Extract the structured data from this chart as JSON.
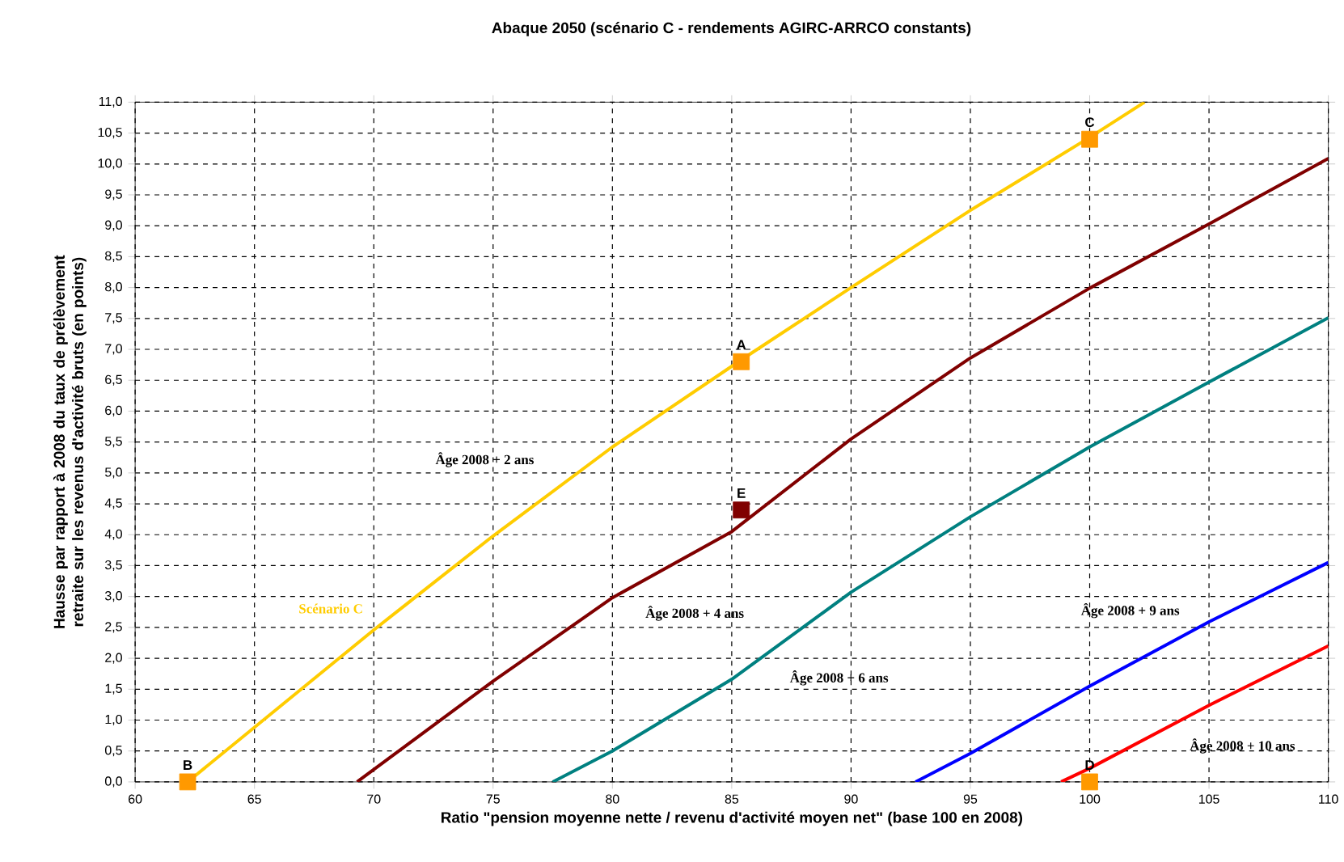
{
  "chart_data": {
    "type": "line",
    "title": "Abaque 2050 (scénario C - rendements AGIRC-ARRCO constants)",
    "xlabel": "Ratio \"pension moyenne nette / revenu d'activité moyen net\" (base 100 en 2008)",
    "ylabel": "Hausse par rapport à 2008 du taux de prélèvement retraite sur les revenus d'activité bruts (en points)",
    "xlim": [
      60,
      110
    ],
    "ylim": [
      0,
      11
    ],
    "xticks": [
      60,
      65,
      70,
      75,
      80,
      85,
      90,
      95,
      100,
      105,
      110
    ],
    "yticks": [
      {
        "value": 0,
        "label": "0,0"
      },
      {
        "value": 0.5,
        "label": "0,5"
      },
      {
        "value": 1,
        "label": "1,0"
      },
      {
        "value": 1.5,
        "label": "1,5"
      },
      {
        "value": 2,
        "label": "2,0"
      },
      {
        "value": 2.5,
        "label": "2,5"
      },
      {
        "value": 3,
        "label": "3,0"
      },
      {
        "value": 3.5,
        "label": "3,5"
      },
      {
        "value": 4,
        "label": "4,0"
      },
      {
        "value": 4.5,
        "label": "4,5"
      },
      {
        "value": 5,
        "label": "5,0"
      },
      {
        "value": 5.5,
        "label": "5,5"
      },
      {
        "value": 6,
        "label": "6,0"
      },
      {
        "value": 6.5,
        "label": "6,5"
      },
      {
        "value": 7,
        "label": "7,0"
      },
      {
        "value": 7.5,
        "label": "7,5"
      },
      {
        "value": 8,
        "label": "8,0"
      },
      {
        "value": 8.5,
        "label": "8,5"
      },
      {
        "value": 9,
        "label": "9,0"
      },
      {
        "value": 9.5,
        "label": "9,5"
      },
      {
        "value": 10,
        "label": "10,0"
      },
      {
        "value": 10.5,
        "label": "10,5"
      },
      {
        "value": 11,
        "label": "11,0"
      }
    ],
    "grid": true,
    "marker": "none",
    "line_style": "solid",
    "series": [
      {
        "name": "Scénario C",
        "color": "#ffcc00",
        "x": [
          62.2,
          70,
          75,
          80,
          85.4,
          90,
          95,
          100,
          102.3
        ],
        "values": [
          0,
          2.46,
          3.98,
          5.42,
          6.83,
          8.0,
          9.25,
          10.43,
          11
        ]
      },
      {
        "name": "Âge 2008  +  4 ans",
        "color": "#800000",
        "x": [
          69.3,
          75,
          80,
          85,
          90,
          95,
          100,
          105,
          110
        ],
        "values": [
          0,
          1.63,
          2.98,
          4.05,
          5.55,
          6.86,
          7.99,
          9.03,
          10.09
        ]
      },
      {
        "name": "Âge 2008  +  6 ans",
        "color": "#008080",
        "x": [
          77.5,
          80,
          85,
          90,
          95,
          100,
          105,
          110
        ],
        "values": [
          0,
          0.5,
          1.66,
          3.07,
          4.29,
          5.42,
          6.47,
          7.51
        ]
      },
      {
        "name": "Âge 2008  +  9 ans",
        "color": "#0000ff",
        "x": [
          92.7,
          95,
          100,
          105,
          110
        ],
        "values": [
          0,
          0.46,
          1.55,
          2.59,
          3.55
        ]
      },
      {
        "name": "Âge 2008  +  10 ans",
        "color": "#ff0000",
        "x": [
          98.8,
          100,
          105,
          110
        ],
        "values": [
          0,
          0.22,
          1.24,
          2.2
        ]
      },
      {
        "type": "scatter",
        "marker": "square",
        "color": "#ff9900",
        "x": [
          85.4,
          62.2,
          100,
          100
        ],
        "values": [
          6.8,
          0,
          10.4,
          0
        ]
      },
      {
        "type": "scatter",
        "marker": "square",
        "color": "#800000",
        "x": [
          85.4
        ],
        "values": [
          4.4
        ]
      }
    ],
    "annotations": [
      {
        "text": "A",
        "x": 85.4,
        "y": 6.8
      },
      {
        "text": "B",
        "x": 62.2,
        "y": 0
      },
      {
        "text": "C",
        "x": 100,
        "y": 10.4
      },
      {
        "text": "D",
        "x": 100,
        "y": 0
      },
      {
        "text": "E",
        "x": 85.4,
        "y": 4.4
      },
      "Âge 2008  +  2 ans"
    ]
  }
}
